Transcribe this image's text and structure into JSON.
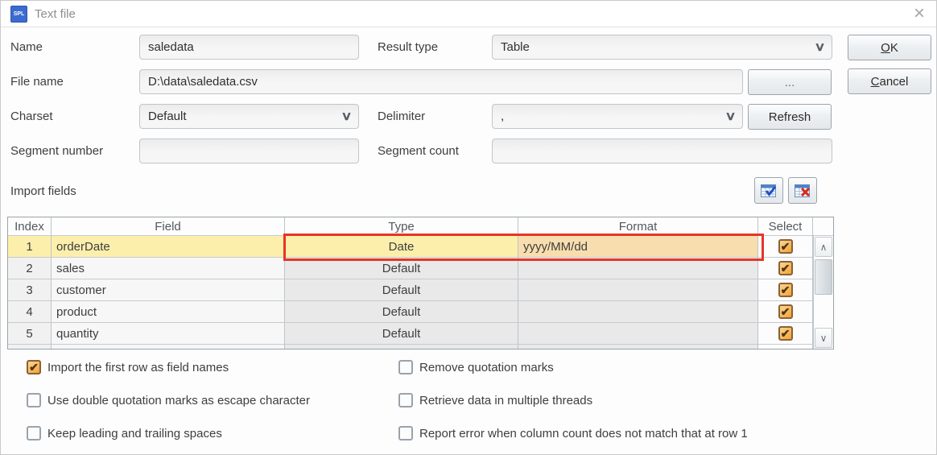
{
  "window": {
    "title": "Text file"
  },
  "icons": {
    "spl_logo_text": "SPL",
    "close": "×",
    "dropdown_chevron": "∨",
    "scroll_up": "∧",
    "scroll_down": "∨",
    "checkmark": "✔",
    "thumb": ""
  },
  "form": {
    "name": {
      "label": "Name",
      "value": "saledata"
    },
    "result_type": {
      "label": "Result type",
      "value": "Table"
    },
    "file_name": {
      "label": "File name",
      "value": "D:\\data\\saledata.csv",
      "browse_label": "..."
    },
    "charset": {
      "label": "Charset",
      "value": "Default"
    },
    "delimiter": {
      "label": "Delimiter",
      "value": ","
    },
    "refresh_label": "Refresh",
    "segment_number": {
      "label": "Segment number",
      "value": ""
    },
    "segment_count": {
      "label": "Segment count",
      "value": ""
    }
  },
  "buttons": {
    "ok": {
      "mnemonic": "O",
      "rest": "K"
    },
    "cancel": {
      "mnemonic": "C",
      "rest": "ancel"
    }
  },
  "import_fields": {
    "label": "Import fields"
  },
  "table": {
    "headers": [
      "Index",
      "Field",
      "Type",
      "Format",
      "Select"
    ],
    "rows": [
      {
        "index": "1",
        "field": "orderDate",
        "type": "Date",
        "format": "yyyy/MM/dd",
        "selected": true,
        "highlighted": true
      },
      {
        "index": "2",
        "field": "sales",
        "type": "Default",
        "format": "",
        "selected": true,
        "highlighted": false
      },
      {
        "index": "3",
        "field": "customer",
        "type": "Default",
        "format": "",
        "selected": true,
        "highlighted": false
      },
      {
        "index": "4",
        "field": "product",
        "type": "Default",
        "format": "",
        "selected": true,
        "highlighted": false
      },
      {
        "index": "5",
        "field": "quantity",
        "type": "Default",
        "format": "",
        "selected": true,
        "highlighted": false
      }
    ]
  },
  "options": {
    "left": [
      {
        "label": "Import the first row as field names",
        "checked": true
      },
      {
        "label": "Use double quotation marks as escape character",
        "checked": false
      },
      {
        "label": "Keep leading and trailing spaces",
        "checked": false
      }
    ],
    "right": [
      {
        "label": "Remove quotation marks",
        "checked": false
      },
      {
        "label": "Retrieve data in multiple threads",
        "checked": false
      },
      {
        "label": "Report error when column count does not match that at row 1",
        "checked": false
      }
    ]
  },
  "colors": {
    "accent_red": "#e53528",
    "row_highlight": "#fcefac",
    "format_cell": "#f8deae",
    "checkbox_orange": "#f3a333",
    "title_icon_blue": "#3a6bd0"
  }
}
